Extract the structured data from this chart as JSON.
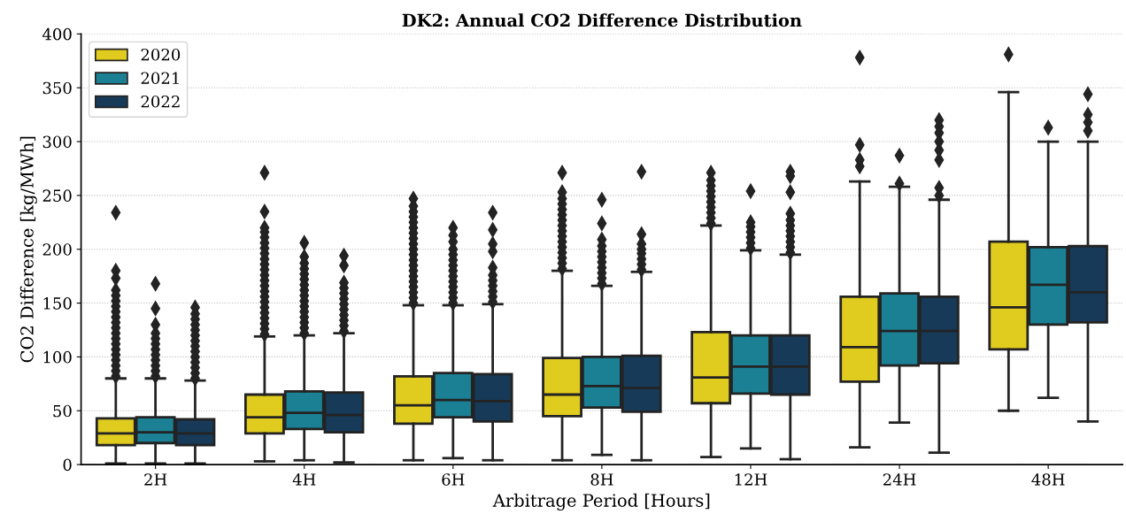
{
  "chart_data": {
    "type": "box",
    "title": "DK2: Annual CO2 Difference Distribution",
    "xlabel": "Arbitrage Period [Hours]",
    "ylabel": "CO2 Difference [kg/MWh]",
    "categories": [
      "2H",
      "4H",
      "6H",
      "8H",
      "12H",
      "24H",
      "48H"
    ],
    "ylim": [
      0,
      400
    ],
    "yticks": [
      0,
      50,
      100,
      150,
      200,
      250,
      300,
      350,
      400
    ],
    "grid": "y",
    "legend": "top left",
    "marker": "diamond",
    "series": [
      {
        "name": "2020",
        "color": "#e0cb1f",
        "boxes": [
          {
            "low": 1,
            "q1": 18,
            "median": 29,
            "q3": 43,
            "high": 80,
            "outliers": [
              82,
              87,
              92,
              97,
              102,
              107,
              112,
              117,
              122,
              127,
              132,
              137,
              142,
              147,
              152,
              157,
              162,
              173,
              180,
              234
            ]
          },
          {
            "low": 3,
            "q1": 29,
            "median": 44,
            "q3": 65,
            "high": 119,
            "outliers": [
              121,
              126,
              131,
              136,
              141,
              146,
              151,
              156,
              161,
              166,
              171,
              176,
              181,
              186,
              191,
              196,
              201,
              206,
              211,
              216,
              220,
              235,
              271
            ]
          },
          {
            "low": 4,
            "q1": 38,
            "median": 55,
            "q3": 82,
            "high": 148,
            "outliers": [
              150,
              155,
              160,
              165,
              170,
              175,
              180,
              185,
              190,
              195,
              200,
              205,
              210,
              215,
              220,
              225,
              230,
              235,
              240,
              247
            ]
          },
          {
            "low": 4,
            "q1": 45,
            "median": 65,
            "q3": 99,
            "high": 180,
            "outliers": [
              182,
              187,
              192,
              197,
              202,
              207,
              212,
              217,
              222,
              227,
              232,
              237,
              242,
              247,
              253,
              271
            ]
          },
          {
            "low": 7,
            "q1": 57,
            "median": 81,
            "q3": 123,
            "high": 222,
            "outliers": [
              224,
              229,
              234,
              239,
              244,
              249,
              254,
              259,
              264,
              271
            ]
          },
          {
            "low": 16,
            "q1": 77,
            "median": 109,
            "q3": 156,
            "high": 263,
            "outliers": [
              277,
              283,
              297,
              378
            ]
          },
          {
            "low": 50,
            "q1": 107,
            "median": 146,
            "q3": 207,
            "high": 346,
            "outliers": [
              381
            ]
          }
        ]
      },
      {
        "name": "2021",
        "color": "#1b8093",
        "boxes": [
          {
            "low": 1,
            "q1": 20,
            "median": 30,
            "q3": 44,
            "high": 80,
            "outliers": [
              82,
              87,
              92,
              97,
              102,
              107,
              112,
              117,
              122,
              130,
              145,
              168
            ]
          },
          {
            "low": 4,
            "q1": 33,
            "median": 48,
            "q3": 68,
            "high": 120,
            "outliers": [
              122,
              127,
              132,
              137,
              142,
              147,
              152,
              157,
              162,
              167,
              172,
              177,
              182,
              187,
              193,
              206
            ]
          },
          {
            "low": 6,
            "q1": 44,
            "median": 60,
            "q3": 85,
            "high": 148,
            "outliers": [
              150,
              155,
              160,
              165,
              170,
              175,
              180,
              185,
              190,
              195,
              200,
              207,
              213,
              220
            ]
          },
          {
            "low": 9,
            "q1": 53,
            "median": 73,
            "q3": 100,
            "high": 166,
            "outliers": [
              168,
              173,
              178,
              183,
              188,
              193,
              198,
              203,
              209,
              224,
              246
            ]
          },
          {
            "low": 15,
            "q1": 66,
            "median": 91,
            "q3": 120,
            "high": 199,
            "outliers": [
              201,
              206,
              211,
              216,
              221,
              225,
              254
            ]
          },
          {
            "low": 39,
            "q1": 92,
            "median": 124,
            "q3": 159,
            "high": 258,
            "outliers": [
              261,
              287
            ]
          },
          {
            "low": 62,
            "q1": 130,
            "median": 167,
            "q3": 202,
            "high": 300,
            "outliers": [
              313
            ]
          }
        ]
      },
      {
        "name": "2022",
        "color": "#173a58",
        "boxes": [
          {
            "low": 1,
            "q1": 18,
            "median": 29,
            "q3": 42,
            "high": 78,
            "outliers": [
              80,
              85,
              90,
              95,
              100,
              105,
              110,
              115,
              120,
              125,
              130,
              135,
              140,
              146
            ]
          },
          {
            "low": 2,
            "q1": 30,
            "median": 46,
            "q3": 67,
            "high": 122,
            "outliers": [
              124,
              129,
              134,
              139,
              144,
              149,
              154,
              159,
              164,
              169,
              185,
              194
            ]
          },
          {
            "low": 4,
            "q1": 40,
            "median": 59,
            "q3": 84,
            "high": 149,
            "outliers": [
              151,
              156,
              161,
              166,
              171,
              176,
              183,
              198,
              205,
              218,
              234
            ]
          },
          {
            "low": 4,
            "q1": 49,
            "median": 71,
            "q3": 101,
            "high": 179,
            "outliers": [
              181,
              186,
              191,
              196,
              200,
              205,
              214,
              272
            ]
          },
          {
            "low": 5,
            "q1": 65,
            "median": 91,
            "q3": 120,
            "high": 195,
            "outliers": [
              197,
              202,
              207,
              212,
              217,
              222,
              227,
              233,
              253,
              268,
              272
            ]
          },
          {
            "low": 11,
            "q1": 94,
            "median": 124,
            "q3": 156,
            "high": 246,
            "outliers": [
              250,
              257,
              283,
              292,
              300,
              308,
              314,
              320
            ]
          },
          {
            "low": 40,
            "q1": 132,
            "median": 160,
            "q3": 203,
            "high": 300,
            "outliers": [
              310,
              318,
              325,
              344
            ]
          }
        ]
      }
    ]
  }
}
